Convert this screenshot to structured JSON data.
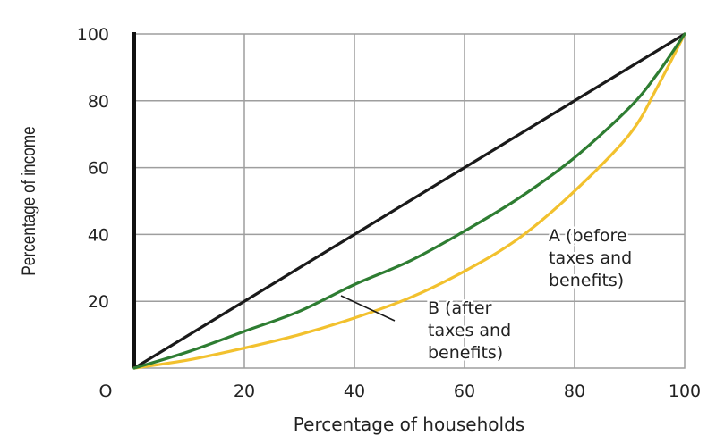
{
  "chart_data": {
    "type": "line",
    "title": "",
    "xlabel": "Percentage of households",
    "ylabel": "Percentage of income",
    "xlim": [
      0,
      100
    ],
    "ylim": [
      0,
      100
    ],
    "grid": true,
    "xticks": [
      "O",
      "20",
      "40",
      "60",
      "80",
      "100"
    ],
    "yticks": [
      "20",
      "40",
      "60",
      "80",
      "100"
    ],
    "series": [
      {
        "color": "#1a1a1a",
        "x": [
          0,
          20,
          40,
          60,
          80,
          100
        ],
        "y": [
          0,
          20,
          40,
          60,
          80,
          100
        ]
      },
      {
        "color": "#2e7d32",
        "x": [
          0,
          10,
          20,
          30,
          40,
          50,
          60,
          70,
          80,
          90,
          95,
          100
        ],
        "y": [
          0,
          5,
          11,
          17,
          25,
          32,
          41,
          51,
          63,
          78,
          88,
          100
        ]
      },
      {
        "color": "#f2c12e",
        "x": [
          0,
          10,
          20,
          30,
          40,
          50,
          60,
          70,
          80,
          90,
          95,
          100
        ],
        "y": [
          0,
          2.5,
          6,
          10,
          15,
          21,
          29,
          39,
          53,
          70,
          84,
          100
        ]
      }
    ],
    "annotations": [
      {
        "lines": [
          "A (before",
          "taxes and",
          "benefits)"
        ]
      },
      {
        "lines": [
          "B (after",
          "taxes and",
          "benefits)"
        ]
      }
    ]
  }
}
